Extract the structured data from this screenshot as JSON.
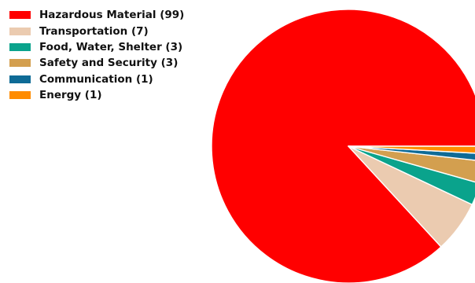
{
  "chart_data": {
    "type": "pie",
    "title": "",
    "slices": [
      {
        "label": "Hazardous Material",
        "value": 99,
        "color": "#ff0000",
        "legend_text": "Hazardous Material (99)"
      },
      {
        "label": "Transportation",
        "value": 7,
        "color": "#ebcbb0",
        "legend_text": "Transportation (7)"
      },
      {
        "label": "Food, Water, Shelter",
        "value": 3,
        "color": "#0aa38c",
        "legend_text": "Food, Water, Shelter (3)"
      },
      {
        "label": "Safety and Security",
        "value": 3,
        "color": "#d39f4f",
        "legend_text": "Safety and Security (3)"
      },
      {
        "label": "Communication",
        "value": 1,
        "color": "#0e6b96",
        "legend_text": "Communication (1)"
      },
      {
        "label": "Energy",
        "value": 1,
        "color": "#ff8c00",
        "legend_text": "Energy (1)"
      }
    ],
    "legend_position": "top-left",
    "start_angle_deg": 0,
    "direction": "counterclockwise"
  }
}
